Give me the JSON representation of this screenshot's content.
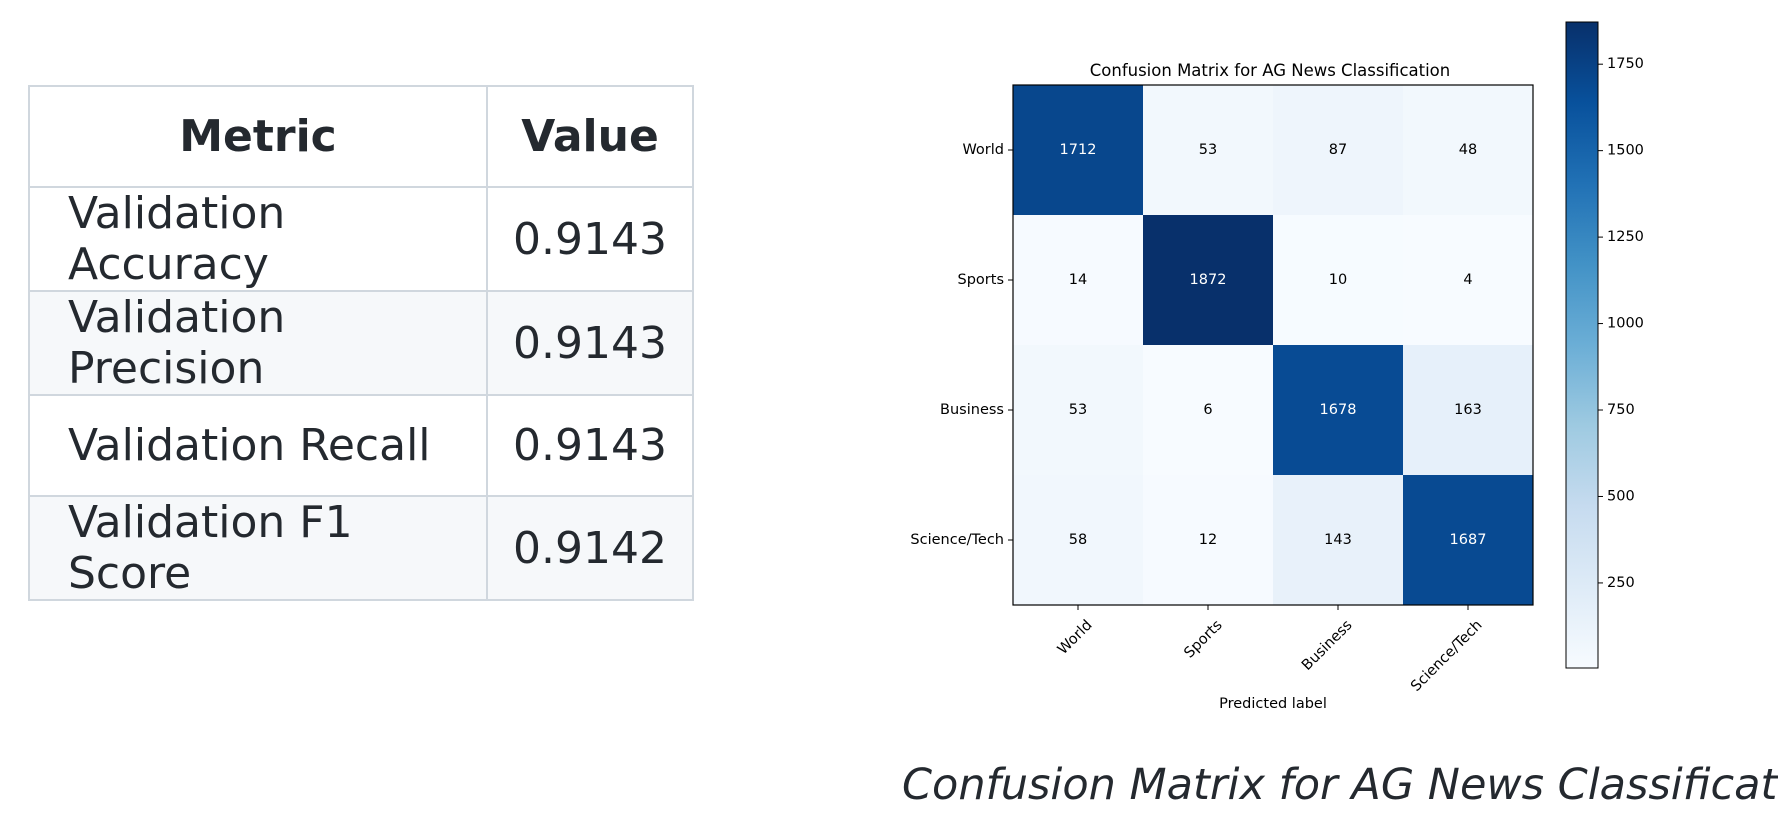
{
  "metrics_table": {
    "headers": [
      "Metric",
      "Value"
    ],
    "rows": [
      {
        "metric": "Validation Accuracy",
        "value": "0.9143"
      },
      {
        "metric": "Validation Precision",
        "value": "0.9143"
      },
      {
        "metric": "Validation Recall",
        "value": "0.9143"
      },
      {
        "metric": "Validation F1 Score",
        "value": "0.9142"
      }
    ]
  },
  "chart_data": {
    "type": "heatmap",
    "title": "Confusion Matrix for AG News Classification",
    "xlabel": "Predicted label",
    "ylabel": "",
    "x_categories": [
      "World",
      "Sports",
      "Business",
      "Science/Tech"
    ],
    "y_categories": [
      "World",
      "Sports",
      "Business",
      "Science/Tech"
    ],
    "values": [
      [
        1712,
        53,
        87,
        48
      ],
      [
        14,
        1872,
        10,
        4
      ],
      [
        53,
        6,
        1678,
        163
      ],
      [
        58,
        12,
        143,
        1687
      ]
    ],
    "colormap": "Blues",
    "color_range": [
      4,
      1872
    ],
    "colorbar_ticks": [
      250,
      500,
      750,
      1000,
      1250,
      1500,
      1750
    ],
    "colorbar_position": "right",
    "x_tick_rotation_deg": 45,
    "colors": {
      "light": "#f7fbff",
      "dark": "#08306b",
      "text_on_dark": "#ffffff",
      "text_on_light": "#000000"
    }
  },
  "caption": "Confusion Matrix for AG News Classification"
}
